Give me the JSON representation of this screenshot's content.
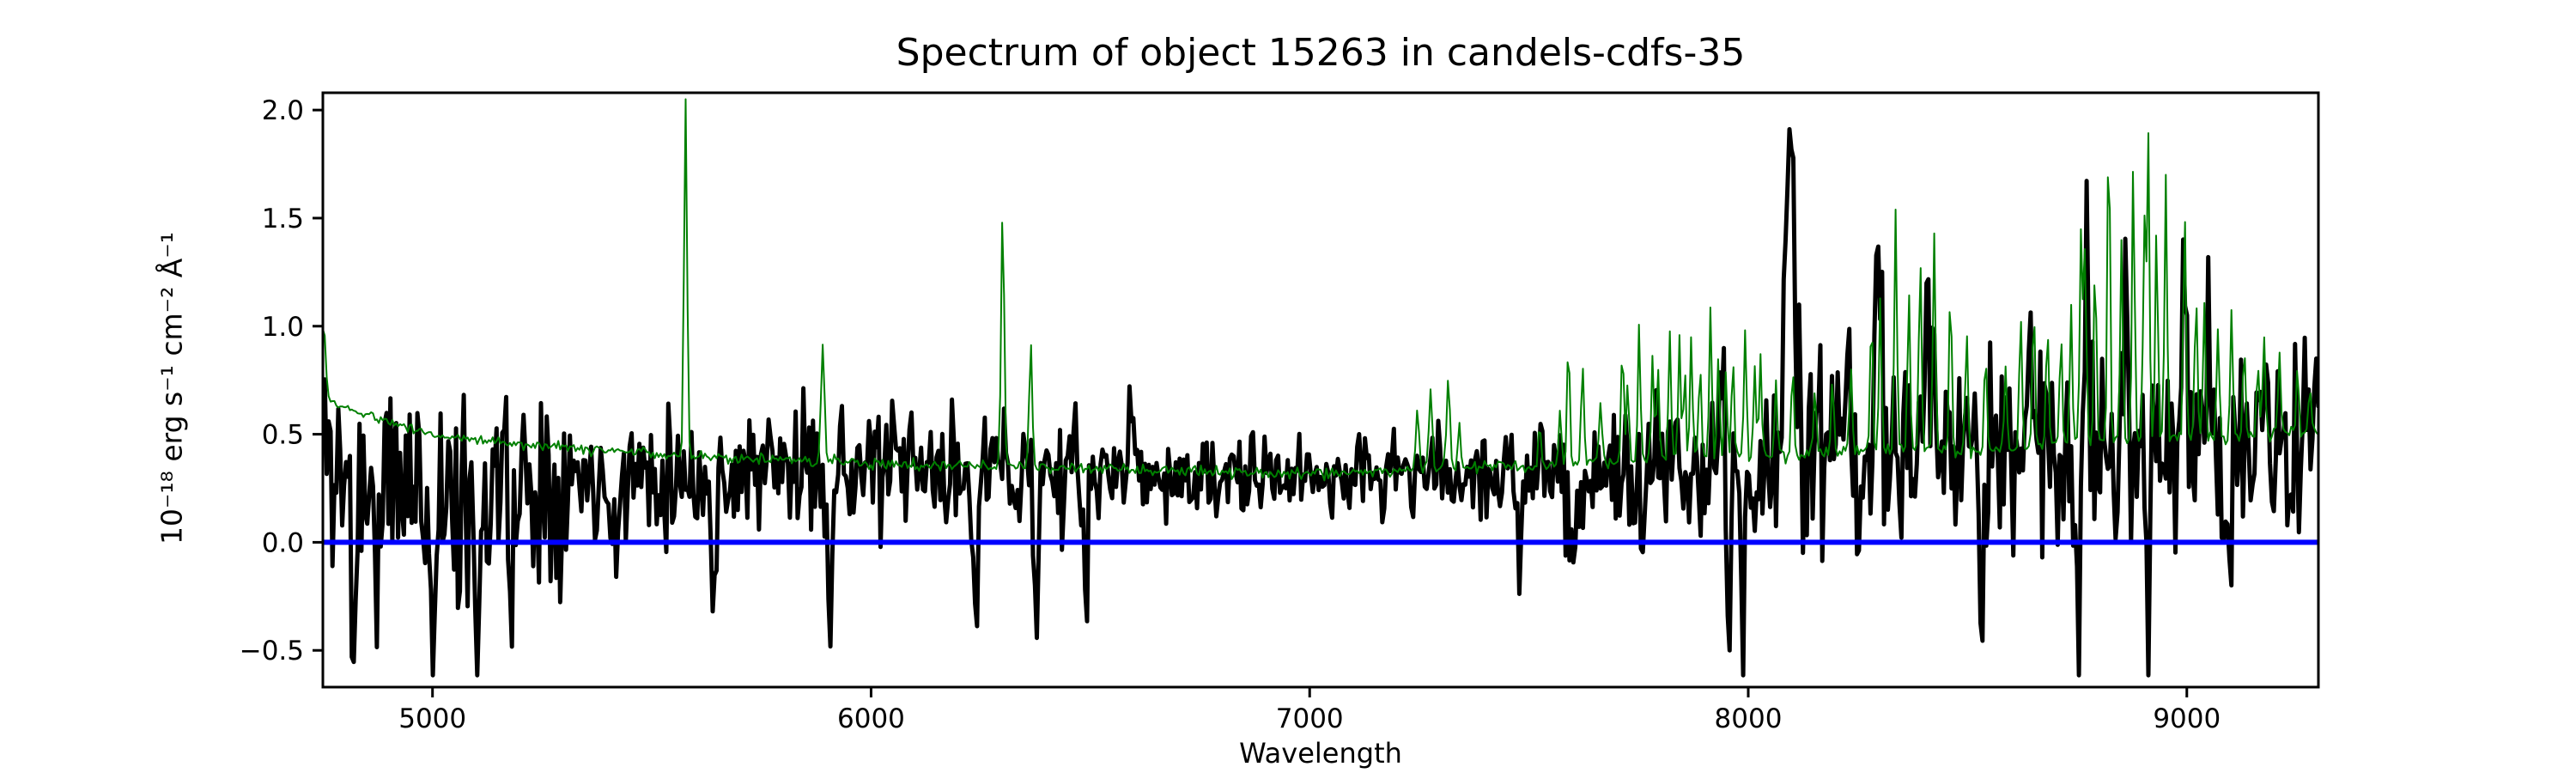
{
  "figure": {
    "background": "#ffffff"
  },
  "chart_data": {
    "type": "line",
    "title": "Spectrum of object 15263 in candels-cdfs-35",
    "xlabel": "Wavelength",
    "ylabel": "10⁻¹⁸ erg s⁻¹ cm⁻² Å⁻¹",
    "xlim": [
      4750,
      9300
    ],
    "ylim": [
      -0.67,
      2.08
    ],
    "xticks": [
      5000,
      6000,
      7000,
      8000,
      9000
    ],
    "xtick_labels": [
      "5000",
      "6000",
      "7000",
      "8000",
      "9000"
    ],
    "yticks": [
      -0.5,
      0.0,
      0.5,
      1.0,
      1.5,
      2.0
    ],
    "ytick_labels": [
      "−0.5",
      "0.0",
      "0.5",
      "1.0",
      "1.5",
      "2.0"
    ],
    "grid": false,
    "legend": null,
    "axes_color": "#000000",
    "sample_step_angstrom": 4.4,
    "series": [
      {
        "name": "observed-flux",
        "color": "#000000",
        "line_width": 5,
        "noise_seed": 11,
        "baseline_points": [
          [
            4750,
            0.55
          ],
          [
            4770,
            0.35
          ],
          [
            4800,
            0.3
          ],
          [
            4850,
            0.28
          ],
          [
            4900,
            0.26
          ],
          [
            4950,
            0.28
          ],
          [
            5000,
            0.25
          ],
          [
            5050,
            0.25
          ],
          [
            5100,
            0.26
          ],
          [
            5150,
            0.28
          ],
          [
            5200,
            0.28
          ],
          [
            5300,
            0.3
          ],
          [
            5400,
            0.32
          ],
          [
            5500,
            0.33
          ],
          [
            5600,
            0.32
          ],
          [
            5700,
            0.33
          ],
          [
            5800,
            0.34
          ],
          [
            5900,
            0.33
          ],
          [
            6000,
            0.34
          ],
          [
            6100,
            0.32
          ],
          [
            6200,
            0.31
          ],
          [
            6300,
            0.33
          ],
          [
            6400,
            0.31
          ],
          [
            6500,
            0.3
          ],
          [
            6600,
            0.3
          ],
          [
            6700,
            0.29
          ],
          [
            6800,
            0.28
          ],
          [
            6900,
            0.3
          ],
          [
            7000,
            0.31
          ],
          [
            7100,
            0.31
          ],
          [
            7200,
            0.32
          ],
          [
            7300,
            0.32
          ],
          [
            7400,
            0.31
          ],
          [
            7500,
            0.3
          ],
          [
            7600,
            0.31
          ],
          [
            7700,
            0.32
          ],
          [
            7800,
            0.33
          ],
          [
            7900,
            0.35
          ],
          [
            8000,
            0.32
          ],
          [
            8100,
            0.38
          ],
          [
            8200,
            0.4
          ],
          [
            8300,
            0.42
          ],
          [
            8400,
            0.42
          ],
          [
            8500,
            0.4
          ],
          [
            8600,
            0.42
          ],
          [
            8700,
            0.44
          ],
          [
            8800,
            0.42
          ],
          [
            8900,
            0.45
          ],
          [
            9000,
            0.44
          ],
          [
            9100,
            0.42
          ],
          [
            9200,
            0.45
          ],
          [
            9300,
            0.5
          ]
        ],
        "noise_sigma_points": [
          [
            4750,
            0.28
          ],
          [
            5250,
            0.26
          ],
          [
            5350,
            0.16
          ],
          [
            6450,
            0.15
          ],
          [
            6550,
            0.1
          ],
          [
            7450,
            0.11
          ],
          [
            7550,
            0.16
          ],
          [
            8050,
            0.18
          ],
          [
            8150,
            0.27
          ],
          [
            9300,
            0.28
          ]
        ],
        "peaks": [
          [
            8095,
            1.95,
            11
          ],
          [
            7940,
            0.95,
            5
          ],
          [
            6594,
            0.8,
            5
          ],
          [
            8295,
            1.28,
            6
          ],
          [
            8409,
            1.29,
            6
          ],
          [
            8640,
            1.0,
            5
          ],
          [
            8772,
            1.3,
            6
          ],
          [
            8858,
            1.3,
            6
          ],
          [
            8995,
            1.4,
            6
          ],
          [
            9050,
            0.95,
            5
          ]
        ],
        "dips": [
          [
            4820,
            -0.45,
            5
          ],
          [
            4870,
            -0.3,
            4
          ],
          [
            5000,
            -0.5,
            5
          ],
          [
            5060,
            -0.35,
            4
          ],
          [
            5105,
            -0.55,
            5
          ],
          [
            5180,
            -0.4,
            4
          ],
          [
            5420,
            -0.25,
            4
          ],
          [
            5640,
            -0.42,
            5
          ],
          [
            5905,
            -0.3,
            4
          ],
          [
            6240,
            -0.35,
            4
          ],
          [
            6376,
            -0.34,
            4
          ],
          [
            6490,
            -0.28,
            4
          ],
          [
            7481,
            -0.2,
            4
          ],
          [
            7605,
            -0.19,
            4
          ],
          [
            7760,
            -0.15,
            4
          ],
          [
            7955,
            -0.47,
            5
          ],
          [
            7988,
            -0.32,
            4
          ],
          [
            8532,
            -0.26,
            4
          ],
          [
            8754,
            -0.45,
            5
          ],
          [
            8912,
            -0.41,
            4
          ],
          [
            9100,
            -0.3,
            4
          ],
          [
            9255,
            -0.25,
            4
          ]
        ]
      },
      {
        "name": "noise-sky-error-spectrum",
        "color": "#008000",
        "line_width": 2,
        "noise_seed": 5,
        "noise_sigma_points": [
          [
            4750,
            0.012
          ],
          [
            9300,
            0.018
          ]
        ],
        "baseline_points": [
          [
            4750,
            0.68
          ],
          [
            4800,
            0.62
          ],
          [
            4900,
            0.56
          ],
          [
            5000,
            0.5
          ],
          [
            5100,
            0.475
          ],
          [
            5200,
            0.455
          ],
          [
            5300,
            0.44
          ],
          [
            5400,
            0.425
          ],
          [
            5500,
            0.41
          ],
          [
            5600,
            0.4
          ],
          [
            5700,
            0.39
          ],
          [
            5800,
            0.38
          ],
          [
            5900,
            0.375
          ],
          [
            6000,
            0.37
          ],
          [
            6100,
            0.36
          ],
          [
            6200,
            0.355
          ],
          [
            6300,
            0.35
          ],
          [
            6400,
            0.345
          ],
          [
            6500,
            0.34
          ],
          [
            6600,
            0.335
          ],
          [
            6700,
            0.33
          ],
          [
            6800,
            0.325
          ],
          [
            6900,
            0.32
          ],
          [
            7000,
            0.32
          ],
          [
            7100,
            0.325
          ],
          [
            7200,
            0.33
          ],
          [
            7300,
            0.34
          ],
          [
            7400,
            0.35
          ],
          [
            7500,
            0.355
          ],
          [
            7600,
            0.36
          ],
          [
            7700,
            0.37
          ],
          [
            7800,
            0.38
          ],
          [
            7900,
            0.39
          ],
          [
            8000,
            0.4
          ],
          [
            8100,
            0.405
          ],
          [
            8200,
            0.415
          ],
          [
            8300,
            0.43
          ],
          [
            8400,
            0.43
          ],
          [
            8500,
            0.42
          ],
          [
            8600,
            0.44
          ],
          [
            8700,
            0.455
          ],
          [
            8800,
            0.465
          ],
          [
            8900,
            0.47
          ],
          [
            9000,
            0.48
          ],
          [
            9100,
            0.49
          ],
          [
            9200,
            0.5
          ],
          [
            9300,
            0.52
          ]
        ],
        "peaks": [
          [
            4752,
            1.02,
            4
          ],
          [
            5577,
            2.04,
            3.5
          ],
          [
            5890,
            0.93,
            4
          ],
          [
            6300,
            1.53,
            3.5
          ],
          [
            6364,
            0.92,
            3.5
          ],
          [
            7246,
            0.62,
            4
          ],
          [
            7276,
            0.71,
            4
          ],
          [
            7316,
            0.77,
            4
          ],
          [
            7341,
            0.56,
            3
          ],
          [
            7524,
            0.56,
            3
          ],
          [
            7571,
            0.62,
            3
          ],
          [
            7590,
            0.93,
            3
          ],
          [
            7622,
            0.83,
            3
          ],
          [
            7663,
            0.66,
            3
          ],
          [
            7713,
            0.91,
            3
          ],
          [
            7725,
            0.75,
            3
          ],
          [
            7751,
            1.01,
            3
          ],
          [
            7782,
            0.87,
            3
          ],
          [
            7794,
            0.8,
            3
          ],
          [
            7821,
            0.98,
            3
          ],
          [
            7843,
            0.94,
            3
          ],
          [
            7855,
            0.8,
            3
          ],
          [
            7870,
            0.93,
            3
          ],
          [
            7890,
            0.86,
            3
          ],
          [
            7914,
            1.1,
            3
          ],
          [
            7932,
            0.85,
            3
          ],
          [
            7949,
            0.8,
            3
          ],
          [
            7965,
            0.87,
            3
          ],
          [
            7993,
            1.0,
            3
          ],
          [
            8015,
            0.81,
            3
          ],
          [
            8028,
            0.86,
            3
          ],
          [
            8063,
            0.76,
            3
          ],
          [
            8101,
            0.83,
            3
          ],
          [
            8152,
            0.71,
            3
          ],
          [
            8192,
            0.76,
            3
          ],
          [
            8234,
            0.81,
            3
          ],
          [
            8281,
            1.06,
            3
          ],
          [
            8301,
            1.11,
            3
          ],
          [
            8336,
            1.55,
            3
          ],
          [
            8366,
            1.16,
            3
          ],
          [
            8392,
            1.31,
            3
          ],
          [
            8424,
            1.43,
            3
          ],
          [
            8461,
            1.18,
            3
          ],
          [
            8498,
            0.98,
            3
          ],
          [
            8541,
            0.86,
            3
          ],
          [
            8587,
            0.81,
            3
          ],
          [
            8621,
            1.06,
            3
          ],
          [
            8651,
            1.11,
            3
          ],
          [
            8682,
            1.01,
            3
          ],
          [
            8713,
            0.95,
            3
          ],
          [
            8736,
            1.1,
            3
          ],
          [
            8759,
            1.47,
            3
          ],
          [
            8768,
            1.36,
            3
          ],
          [
            8791,
            1.31,
            3
          ],
          [
            8822,
            1.97,
            3
          ],
          [
            8851,
            1.41,
            3
          ],
          [
            8878,
            1.76,
            3
          ],
          [
            8903,
            1.5,
            3
          ],
          [
            8912,
            1.88,
            3
          ],
          [
            8931,
            1.46,
            3
          ],
          [
            8952,
            1.71,
            3
          ],
          [
            8995,
            1.55,
            3
          ],
          [
            9021,
            1.16,
            3
          ],
          [
            9040,
            1.12,
            3
          ],
          [
            9071,
            1.01,
            3
          ],
          [
            9102,
            1.06,
            3
          ],
          [
            9131,
            0.91,
            3
          ],
          [
            9162,
            0.85,
            3
          ],
          [
            9176,
            0.96,
            3
          ],
          [
            9211,
            0.86,
            3
          ],
          [
            9252,
            0.81,
            3
          ],
          [
            9281,
            0.71,
            3
          ]
        ],
        "dips": []
      },
      {
        "name": "zero-flux-level",
        "color": "#0000ff",
        "line_width": 6,
        "y": 0.0
      }
    ]
  }
}
